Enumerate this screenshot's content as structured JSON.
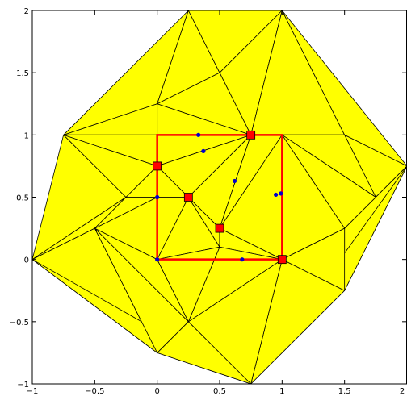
{
  "chart_data": {
    "type": "scatter",
    "title": "",
    "xlabel": "",
    "ylabel": "",
    "xlim": [
      -1,
      2
    ],
    "ylim": [
      -1,
      2
    ],
    "grid": false,
    "x_tick_labels": [
      "−1",
      "−0.5",
      "0",
      "0.5",
      "1",
      "1.5",
      "2"
    ],
    "y_tick_labels": [
      "−1",
      "−0.5",
      "0",
      "0.5",
      "1",
      "1.5",
      "2"
    ],
    "x_ticks": [
      -1,
      -0.5,
      0,
      0.5,
      1,
      1.5,
      2
    ],
    "y_ticks": [
      -1,
      -0.5,
      0,
      0.5,
      1,
      1.5,
      2
    ],
    "triangulation": {
      "fill_color": "#ffff00",
      "edge_color": "#000000",
      "vertices": [
        [
          -1,
          0
        ],
        [
          -0.75,
          1
        ],
        [
          0.25,
          2
        ],
        [
          1.0,
          2
        ],
        [
          2,
          0.75
        ],
        [
          0.75,
          -1
        ],
        [
          0,
          -0.75
        ],
        [
          -0.5,
          0.25
        ],
        [
          -0.25,
          0.5
        ],
        [
          0,
          1.25
        ],
        [
          0.5,
          1.5
        ],
        [
          1.5,
          1.0
        ],
        [
          1.75,
          0.5
        ],
        [
          1.5,
          0.25
        ],
        [
          1.5,
          -0.25
        ],
        [
          0.25,
          -0.5
        ],
        [
          0.5,
          0.1
        ],
        [
          0.25,
          0.5
        ],
        [
          0,
          0.75
        ],
        [
          0.75,
          1.0
        ],
        [
          1,
          0
        ],
        [
          0.5,
          0.25
        ],
        [
          0,
          0
        ],
        [
          0,
          0.5
        ],
        [
          1,
          1
        ],
        [
          0,
          1
        ]
      ],
      "triangles": [
        [
          0,
          1,
          8
        ],
        [
          0,
          8,
          7
        ],
        [
          0,
          7,
          6
        ],
        [
          0,
          6,
          5
        ],
        [
          1,
          2,
          9
        ],
        [
          1,
          9,
          25
        ],
        [
          1,
          25,
          18
        ],
        [
          1,
          18,
          8
        ],
        [
          2,
          10,
          9
        ],
        [
          2,
          3,
          10
        ],
        [
          3,
          19,
          10
        ],
        [
          3,
          11,
          19
        ],
        [
          3,
          4,
          11
        ],
        [
          4,
          12,
          11
        ],
        [
          4,
          13,
          12
        ],
        [
          4,
          14,
          13
        ],
        [
          4,
          5,
          14
        ],
        [
          5,
          20,
          14
        ],
        [
          5,
          15,
          20
        ],
        [
          5,
          6,
          15
        ],
        [
          6,
          7,
          15
        ],
        [
          7,
          22,
          15
        ],
        [
          7,
          23,
          22
        ],
        [
          7,
          8,
          23
        ],
        [
          8,
          18,
          23
        ],
        [
          9,
          10,
          19
        ],
        [
          9,
          19,
          25
        ],
        [
          25,
          19,
          18
        ],
        [
          18,
          19,
          17
        ],
        [
          18,
          17,
          23
        ],
        [
          23,
          17,
          22
        ],
        [
          17,
          16,
          22
        ],
        [
          17,
          21,
          16
        ],
        [
          17,
          19,
          21
        ],
        [
          19,
          24,
          21
        ],
        [
          21,
          24,
          20
        ],
        [
          21,
          20,
          16
        ],
        [
          16,
          20,
          15
        ],
        [
          22,
          16,
          15
        ],
        [
          19,
          11,
          24
        ],
        [
          11,
          12,
          24
        ],
        [
          12,
          13,
          24
        ],
        [
          13,
          20,
          24
        ],
        [
          13,
          14,
          20
        ]
      ]
    },
    "series": [
      {
        "kind": "polygon-outline",
        "color": "#ff0000",
        "points": [
          [
            0,
            0
          ],
          [
            1,
            0
          ],
          [
            1,
            1
          ],
          [
            0,
            1
          ],
          [
            0,
            0
          ]
        ]
      },
      {
        "kind": "red-square-markers",
        "color": "#ff0000",
        "x": [
          0,
          0.25,
          0.75,
          0.5,
          1
        ],
        "y": [
          0.75,
          0.5,
          1.0,
          0.25,
          0
        ]
      },
      {
        "kind": "blue-dot-markers",
        "color": "#0000cc",
        "x": [
          0.33,
          0.37,
          0.62,
          0.95,
          0.99,
          0,
          0,
          0.68
        ],
        "y": [
          1.0,
          0.87,
          0.63,
          0.52,
          0.53,
          0.5,
          0,
          0
        ]
      }
    ]
  }
}
